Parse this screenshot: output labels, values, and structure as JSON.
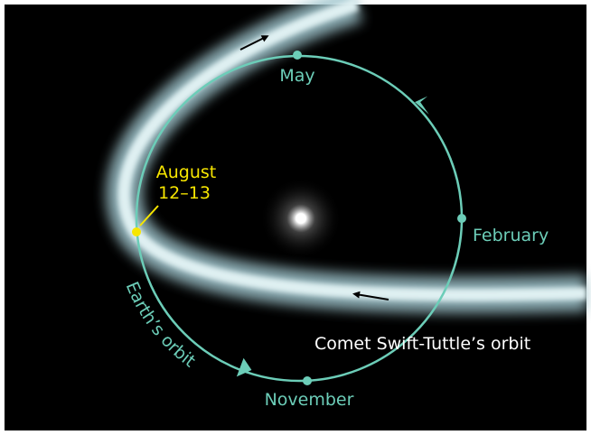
{
  "labels": {
    "may": "May",
    "february": "February",
    "november": "November",
    "august": [
      "August",
      "12–13"
    ],
    "earth_orbit": "Earth’s orbit",
    "comet_orbit": "Comet Swift-Tuttle’s orbit"
  }
}
